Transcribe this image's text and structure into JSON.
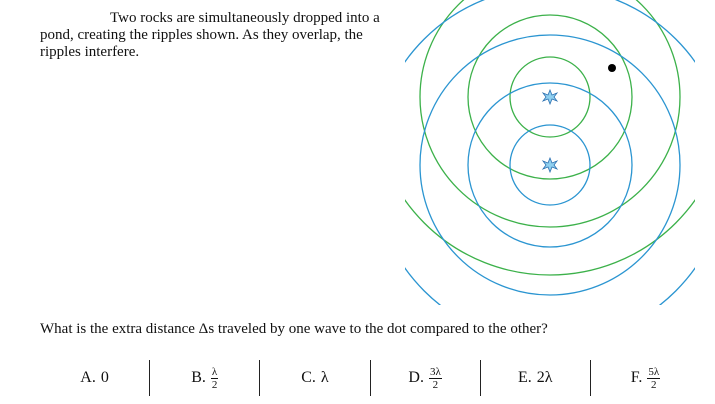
{
  "paragraph": "Two rocks are simultaneously dropped into a pond, creating the ripples shown. As they overlap, the ripples interfere.",
  "question": "What is the extra distance Δs traveled by one wave to the dot compared to the other?",
  "options": [
    {
      "letter": "A.",
      "text": "0"
    },
    {
      "letter": "B.",
      "num": "λ",
      "den": "2"
    },
    {
      "letter": "C.",
      "text": "λ"
    },
    {
      "letter": "D.",
      "num": "3λ",
      "den": "2"
    },
    {
      "letter": "E.",
      "text": "2λ"
    },
    {
      "letter": "F.",
      "num": "5λ",
      "den": "2"
    }
  ]
}
